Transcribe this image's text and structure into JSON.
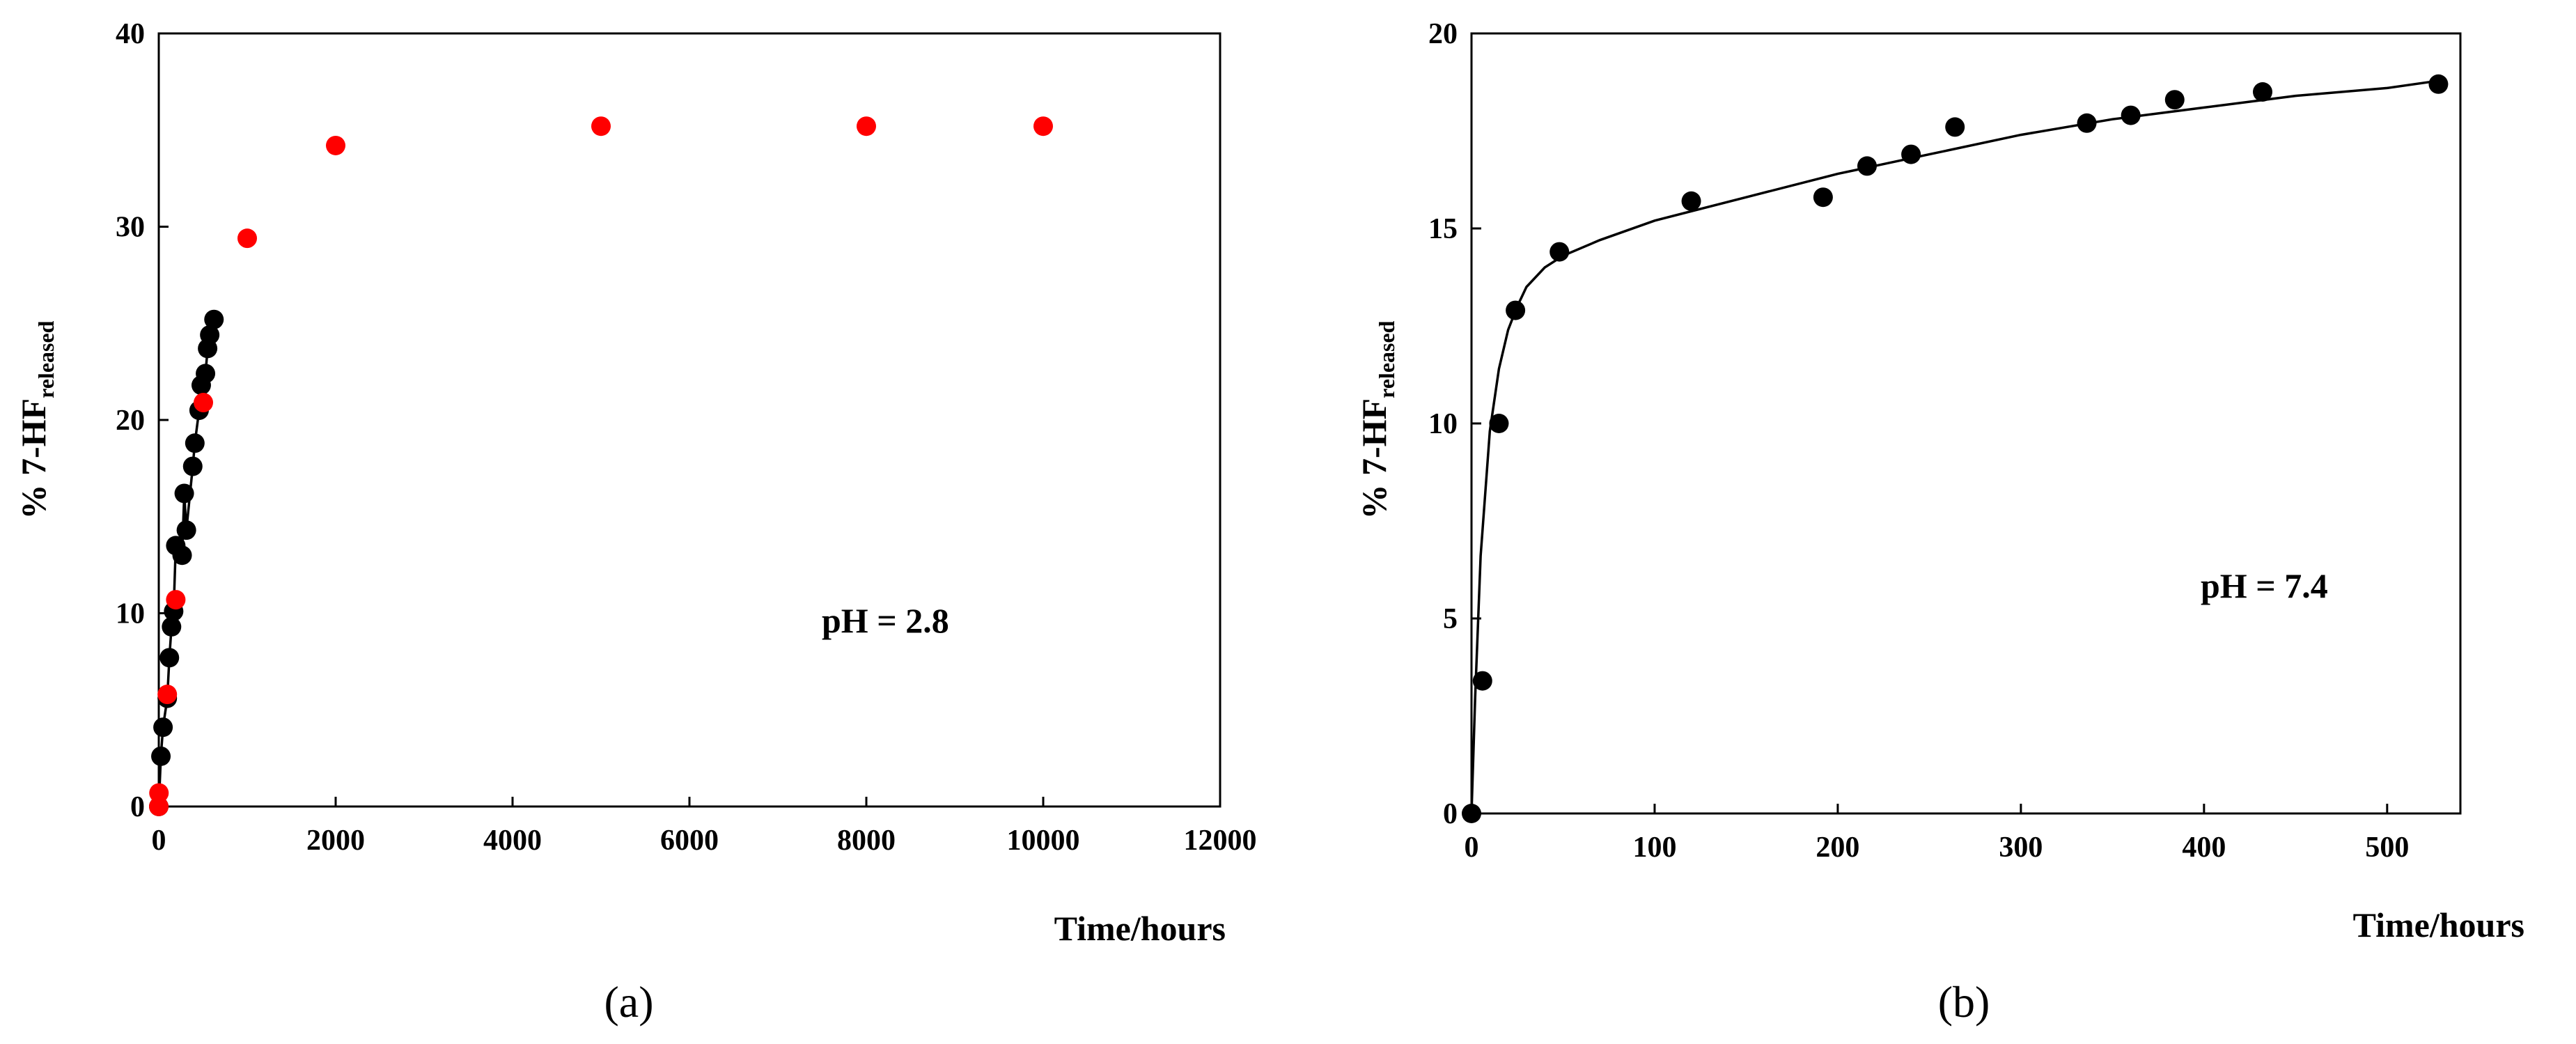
{
  "chart_data": [
    {
      "type": "scatter",
      "panel_label": "(a)",
      "xlabel": "Time/hours",
      "ylabel_main": "% 7-HF",
      "ylabel_sub": "released",
      "annotation": "pH = 2.8",
      "xlim": [
        0,
        12000
      ],
      "ylim": [
        0,
        40
      ],
      "xticks": [
        0,
        2000,
        4000,
        6000,
        8000,
        10000,
        12000
      ],
      "yticks": [
        0,
        10,
        20,
        30,
        40
      ],
      "grid": false,
      "colors": {
        "black": "#000000",
        "red": "#ff0000"
      },
      "series": [
        {
          "color": "#000000",
          "fit_line": true,
          "points": [
            [
              0,
              0
            ],
            [
              24,
              2.6
            ],
            [
              48,
              4.1
            ],
            [
              96,
              5.6
            ],
            [
              120,
              7.7
            ],
            [
              144,
              9.3
            ],
            [
              168,
              10.1
            ],
            [
              192,
              13.5
            ],
            [
              264,
              13.0
            ],
            [
              288,
              16.2
            ],
            [
              312,
              14.3
            ],
            [
              384,
              17.6
            ],
            [
              408,
              18.8
            ],
            [
              456,
              20.5
            ],
            [
              480,
              21.8
            ],
            [
              528,
              22.4
            ],
            [
              552,
              23.7
            ],
            [
              576,
              24.4
            ],
            [
              624,
              25.2
            ]
          ]
        },
        {
          "color": "#ff0000",
          "fit_line": false,
          "points": [
            [
              0,
              0
            ],
            [
              2,
              0.7
            ],
            [
              96,
              5.8
            ],
            [
              192,
              10.7
            ],
            [
              504,
              20.9
            ],
            [
              1000,
              29.4
            ],
            [
              2000,
              34.2
            ],
            [
              5000,
              35.2
            ],
            [
              8000,
              35.2
            ],
            [
              10000,
              35.2
            ]
          ]
        }
      ]
    },
    {
      "type": "scatter",
      "panel_label": "(b)",
      "xlabel": "Time/hours",
      "ylabel_main": "% 7-HF",
      "ylabel_sub": "released",
      "annotation": "pH = 7.4",
      "xlim": [
        0,
        540
      ],
      "ylim": [
        0,
        20
      ],
      "xticks": [
        0,
        100,
        200,
        300,
        400,
        500
      ],
      "yticks": [
        0,
        5,
        10,
        15,
        20
      ],
      "grid": false,
      "series": [
        {
          "color": "#000000",
          "fit_line": true,
          "points": [
            [
              0,
              0
            ],
            [
              6,
              3.4
            ],
            [
              15,
              10.0
            ],
            [
              24,
              12.9
            ],
            [
              48,
              14.4
            ],
            [
              120,
              15.7
            ],
            [
              192,
              15.8
            ],
            [
              216,
              16.6
            ],
            [
              240,
              16.9
            ],
            [
              264,
              17.6
            ],
            [
              336,
              17.7
            ],
            [
              360,
              17.9
            ],
            [
              384,
              18.3
            ],
            [
              432,
              18.5
            ],
            [
              528,
              18.7
            ]
          ],
          "fit_curve": [
            [
              0,
              0
            ],
            [
              2,
              3.0
            ],
            [
              5,
              6.6
            ],
            [
              10,
              9.8
            ],
            [
              15,
              11.4
            ],
            [
              20,
              12.4
            ],
            [
              25,
              13.0
            ],
            [
              30,
              13.5
            ],
            [
              40,
              14.0
            ],
            [
              50,
              14.3
            ],
            [
              70,
              14.7
            ],
            [
              100,
              15.2
            ],
            [
              150,
              15.8
            ],
            [
              200,
              16.4
            ],
            [
              250,
              16.9
            ],
            [
              300,
              17.4
            ],
            [
              350,
              17.8
            ],
            [
              400,
              18.1
            ],
            [
              450,
              18.4
            ],
            [
              500,
              18.6
            ],
            [
              530,
              18.8
            ]
          ]
        }
      ]
    }
  ]
}
